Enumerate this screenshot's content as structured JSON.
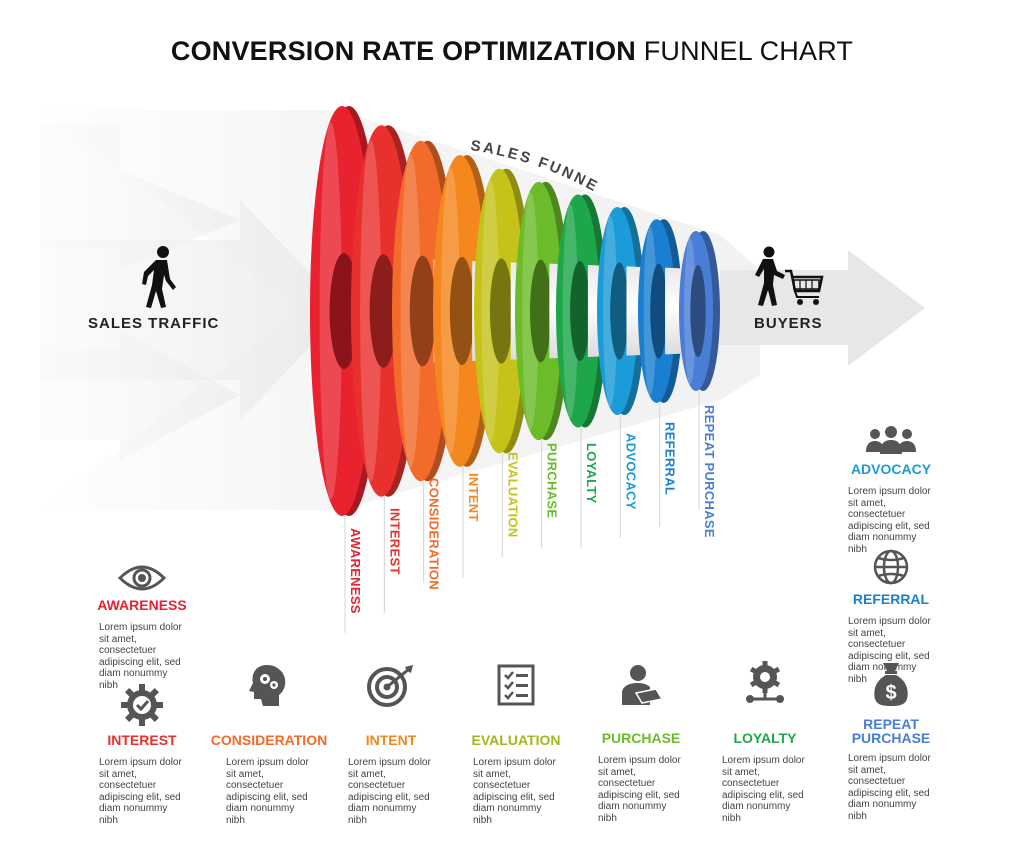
{
  "title": {
    "bold": "CONVERSION RATE OPTIMIZATION",
    "light": "FUNNEL CHART"
  },
  "funnel_label": "SALES FUNNEL",
  "traffic_label": "SALES TRAFFIC",
  "buyers_label": "BUYERS",
  "stages": [
    {
      "name": "AWARENESS",
      "color": "#e8222e"
    },
    {
      "name": "INTEREST",
      "color": "#e8302c"
    },
    {
      "name": "CONSIDERATION",
      "color": "#f26b2a"
    },
    {
      "name": "INTENT",
      "color": "#f5871f"
    },
    {
      "name": "EVALUATION",
      "color": "#c5c31a"
    },
    {
      "name": "PURCHASE",
      "color": "#6cbb2a"
    },
    {
      "name": "LOYALTY",
      "color": "#1ea64a"
    },
    {
      "name": "ADVOCACY",
      "color": "#1b9bd7"
    },
    {
      "name": "REFERRAL",
      "color": "#1a7fd0"
    },
    {
      "name": "REPEAT PURCHASE",
      "color": "#4a7dd6"
    }
  ],
  "cards": {
    "awareness": {
      "title": "AWARENESS",
      "color": "#e8222e",
      "icon": "eye-icon",
      "text": "Lorem ipsum dolor sit amet, consectetuer adipiscing elit, sed diam nonummy nibh"
    },
    "interest": {
      "title": "INTEREST",
      "color": "#e8302c",
      "icon": "gear-check-icon",
      "text": "Lorem ipsum dolor sit amet, consectetuer adipiscing elit, sed diam nonummy nibh"
    },
    "consideration": {
      "title": "CONSIDERATION",
      "color": "#f26b2a",
      "icon": "head-gears-icon",
      "text": "Lorem ipsum dolor sit amet, consectetuer adipiscing elit, sed diam nonummy nibh"
    },
    "intent": {
      "title": "INTENT",
      "color": "#f5871f",
      "icon": "target-icon",
      "text": "Lorem ipsum dolor sit amet, consectetuer adipiscing elit, sed diam nonummy nibh"
    },
    "evaluation": {
      "title": "EVALUATION",
      "color": "#9fb91a",
      "icon": "checklist-icon",
      "text": "Lorem ipsum dolor sit amet, consectetuer adipiscing elit, sed diam nonummy nibh"
    },
    "purchase": {
      "title": "PURCHASE",
      "color": "#6cbb2a",
      "icon": "user-payment-icon",
      "text": "Lorem ipsum dolor sit amet, consectetuer adipiscing elit, sed diam nonummy nibh"
    },
    "loyalty": {
      "title": "LOYALTY",
      "color": "#1ea64a",
      "icon": "gear-network-icon",
      "text": "Lorem ipsum dolor sit amet, consectetuer adipiscing elit, sed diam nonummy nibh"
    },
    "advocacy": {
      "title": "ADVOCACY",
      "color": "#1b9bd7",
      "icon": "group-icon",
      "text": "Lorem ipsum dolor sit amet, consectetuer adipiscing elit, sed diam nonummy nibh"
    },
    "referral": {
      "title": "REFERRAL",
      "color": "#1a7fd0",
      "icon": "globe-icon",
      "text": "Lorem ipsum dolor sit amet, consectetuer adipiscing elit, sed diam nonummy nibh"
    },
    "repeat": {
      "title": "REPEAT\nPURCHASE",
      "color": "#4a7dd6",
      "icon": "money-bag-icon",
      "text": "Lorem ipsum dolor sit amet, consectetuer adipiscing elit, sed diam nonummy nibh"
    }
  }
}
